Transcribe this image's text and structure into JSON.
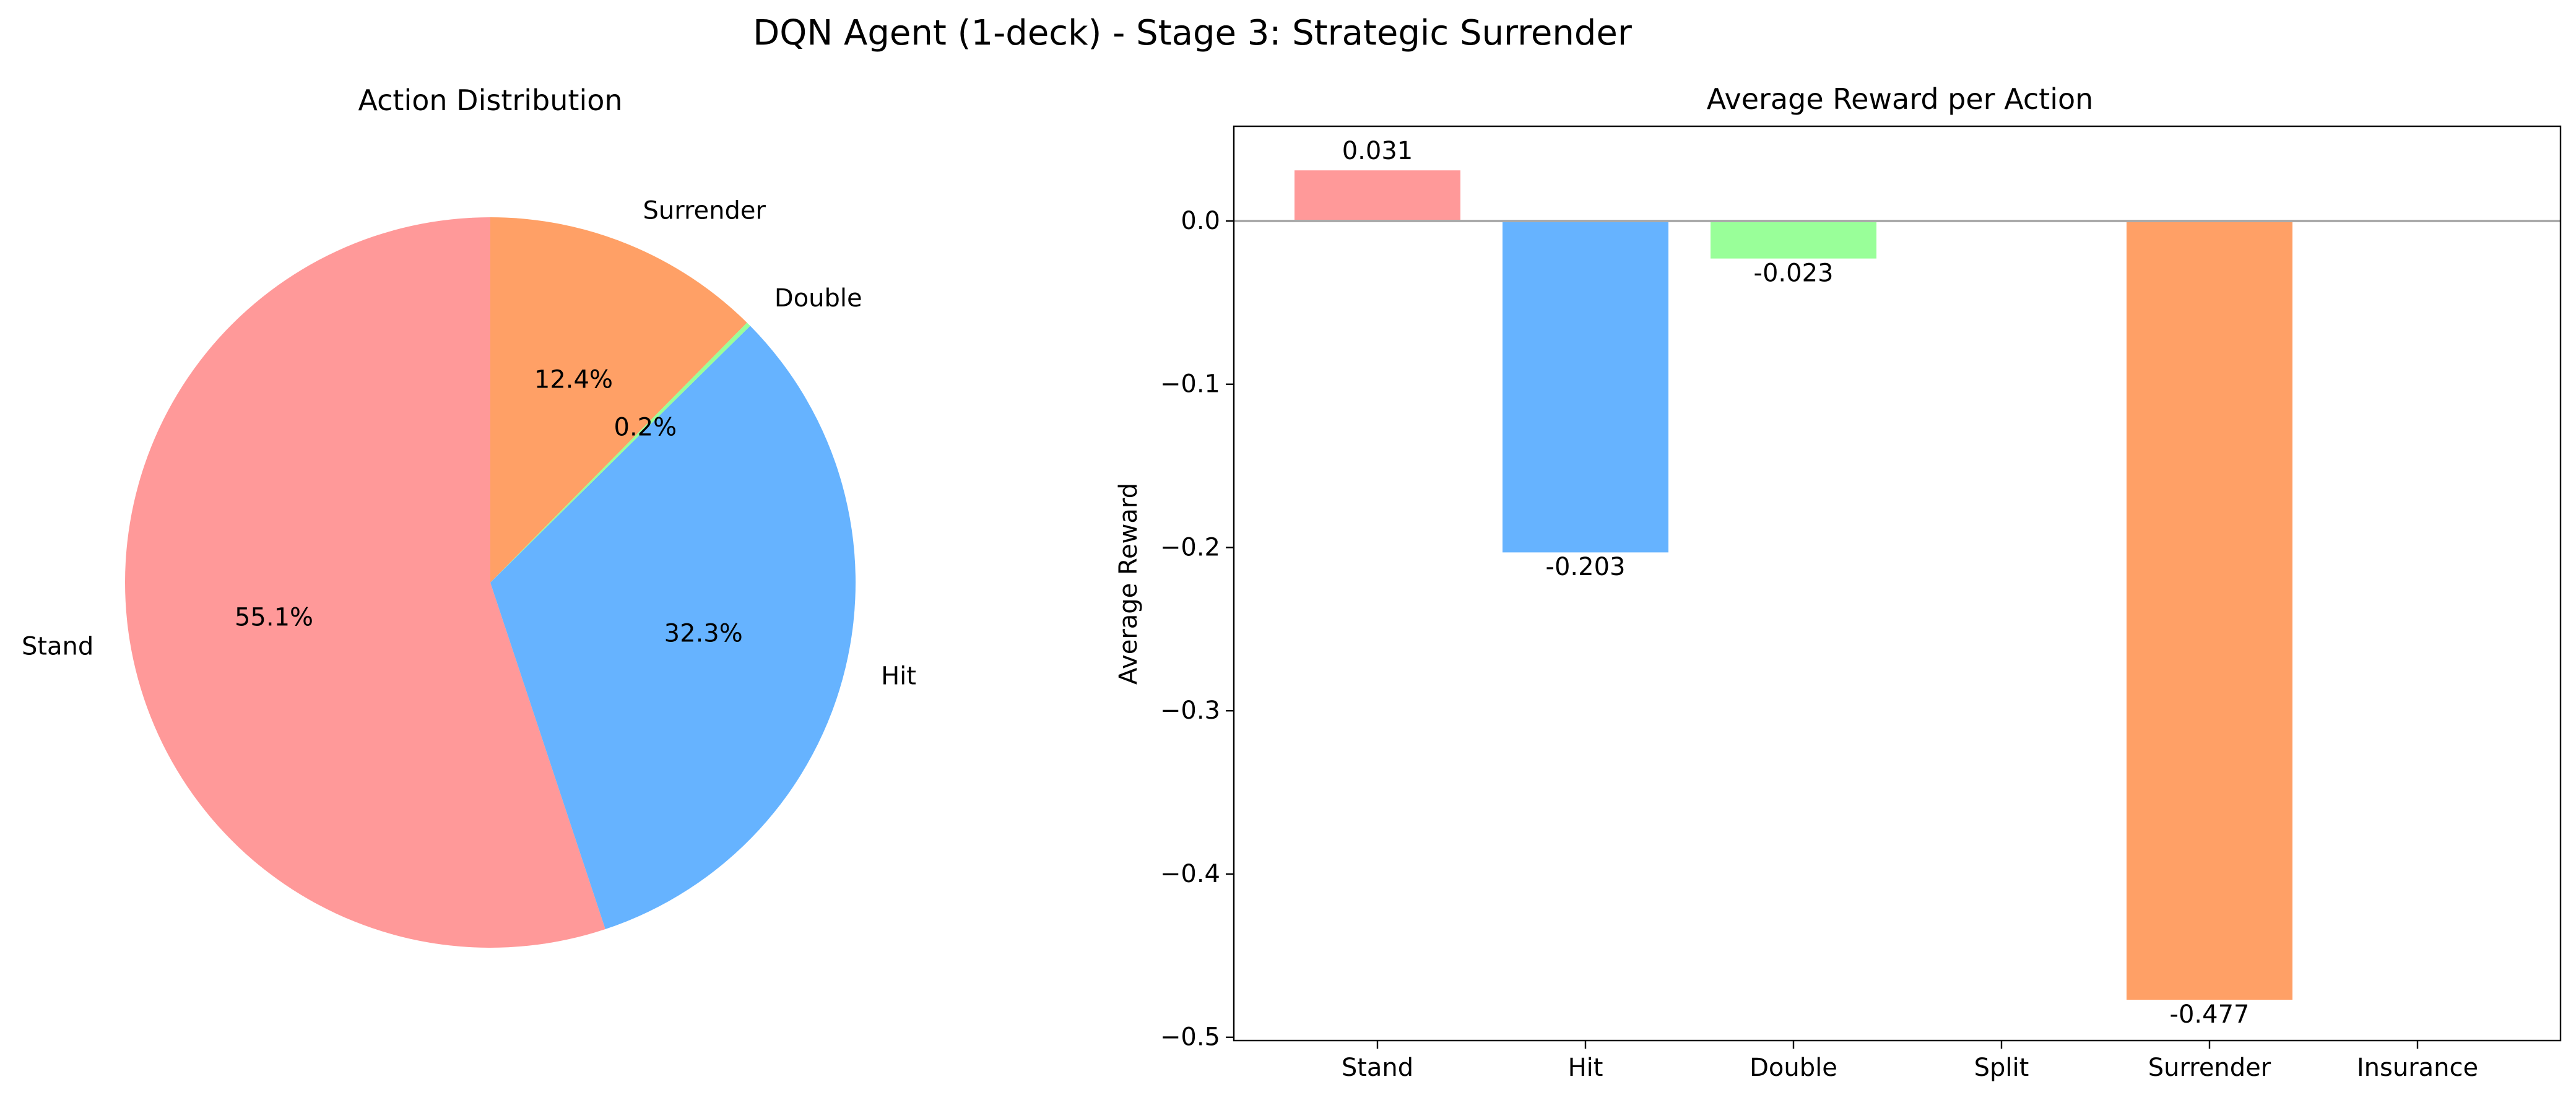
{
  "figure_title": "DQN Agent (1-deck) - Stage 3: Strategic Surrender",
  "chart_data": [
    {
      "type": "pie",
      "title": "Action Distribution",
      "slices": [
        {
          "label": "Stand",
          "value": 55.1,
          "pct_label": "55.1%",
          "color": "#ff9999"
        },
        {
          "label": "Hit",
          "value": 32.3,
          "pct_label": "32.3%",
          "color": "#66b3ff"
        },
        {
          "label": "Double",
          "value": 0.2,
          "pct_label": "0.2%",
          "color": "#99ff99"
        },
        {
          "label": "Surrender",
          "value": 12.4,
          "pct_label": "12.4%",
          "color": "#ffa066"
        }
      ]
    },
    {
      "type": "bar",
      "title": "Average Reward per Action",
      "xlabel": "",
      "ylabel": "Average Reward",
      "categories": [
        "Stand",
        "Hit",
        "Double",
        "Split",
        "Surrender",
        "Insurance"
      ],
      "values": [
        0.031,
        -0.203,
        -0.023,
        null,
        -0.477,
        null
      ],
      "value_labels": [
        "0.031",
        "-0.203",
        "-0.023",
        "",
        "-0.477",
        ""
      ],
      "colors": [
        "#ff9999",
        "#66b3ff",
        "#99ff99",
        "#ffcc99",
        "#ffa066",
        "#c2c2f0"
      ],
      "ylim": [
        -0.502,
        0.058
      ],
      "yticks": [
        0.0,
        -0.1,
        -0.2,
        -0.3,
        -0.4,
        -0.5
      ],
      "ytick_labels": [
        "0.0",
        "−0.1",
        "−0.2",
        "−0.3",
        "−0.4",
        "−0.5"
      ],
      "grid": false,
      "zero_line": true
    }
  ]
}
